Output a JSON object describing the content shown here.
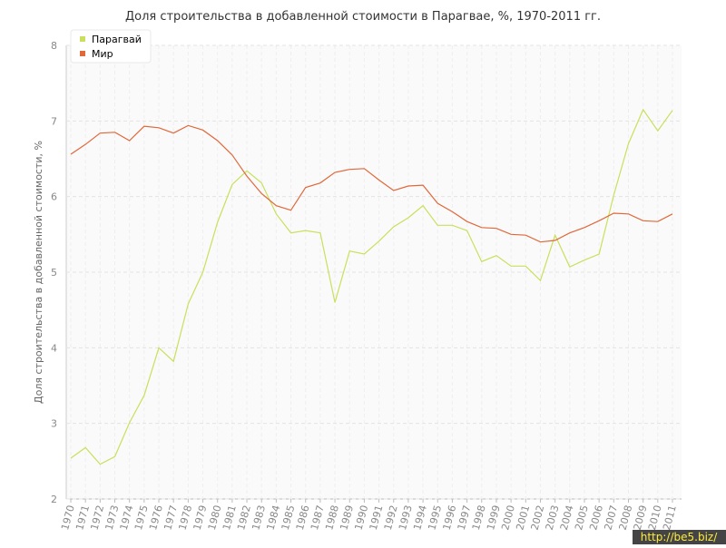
{
  "chart_data": {
    "type": "line",
    "title": "Доля строительства в добавленной стоимости в Парагвае, %, 1970-2011 гг.",
    "y_label": "Доля строительства в добавленной стоимости, %",
    "x": [
      1970,
      1971,
      1972,
      1973,
      1974,
      1975,
      1976,
      1977,
      1978,
      1979,
      1980,
      1981,
      1982,
      1983,
      1984,
      1985,
      1986,
      1987,
      1988,
      1989,
      1990,
      1991,
      1992,
      1993,
      1994,
      1995,
      1996,
      1997,
      1998,
      1999,
      2000,
      2001,
      2002,
      2003,
      2004,
      2005,
      2006,
      2007,
      2008,
      2009,
      2010,
      2011
    ],
    "xlim": [
      1970,
      2011
    ],
    "ylim": [
      2,
      8
    ],
    "yticks": [
      2,
      3,
      4,
      5,
      6,
      7,
      8
    ],
    "grid": true,
    "legend": "top-left",
    "series": [
      {
        "name": "Парагвай",
        "color": "#c8e05c",
        "values": [
          2.54,
          2.68,
          2.46,
          2.56,
          3.01,
          3.37,
          4.0,
          3.82,
          4.58,
          5.0,
          5.66,
          6.16,
          6.34,
          6.18,
          5.77,
          5.52,
          5.55,
          5.52,
          4.6,
          5.28,
          5.24,
          5.41,
          5.6,
          5.72,
          5.88,
          5.62,
          5.62,
          5.55,
          5.14,
          5.22,
          5.08,
          5.08,
          4.89,
          5.49,
          5.07,
          5.16,
          5.24,
          6.02,
          6.7,
          7.15,
          6.87,
          7.14
        ]
      },
      {
        "name": "Мир",
        "color": "#e0683a",
        "values": [
          6.56,
          6.69,
          6.84,
          6.85,
          6.74,
          6.93,
          6.91,
          6.84,
          6.94,
          6.88,
          6.74,
          6.55,
          6.27,
          6.04,
          5.88,
          5.82,
          6.12,
          6.18,
          6.32,
          6.36,
          6.37,
          6.22,
          6.08,
          6.14,
          6.15,
          5.91,
          5.8,
          5.67,
          5.59,
          5.58,
          5.5,
          5.49,
          5.4,
          5.42,
          5.52,
          5.59,
          5.68,
          5.78,
          5.77,
          5.68,
          5.67,
          5.77
        ]
      }
    ],
    "watermark": "http://be5.biz/"
  }
}
